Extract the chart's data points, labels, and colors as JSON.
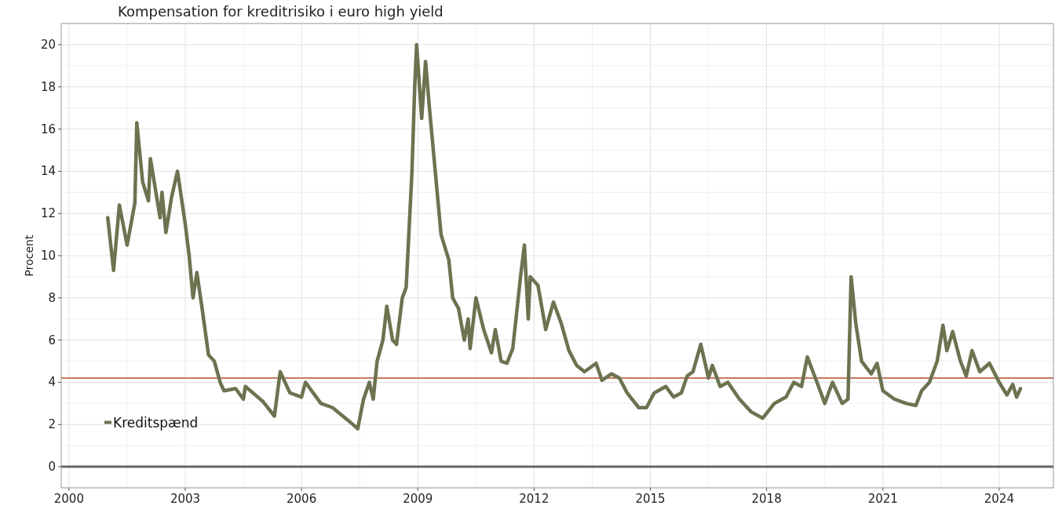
{
  "chart_data": {
    "type": "line",
    "title": "Kompensation for kreditrisiko i euro high yield",
    "ylabel": "Procent",
    "xlim": [
      1999.8,
      2025.4
    ],
    "xticks": [
      2000,
      2003,
      2006,
      2009,
      2012,
      2015,
      2018,
      2021,
      2024
    ],
    "ylim": [
      -1,
      21
    ],
    "yticks": [
      0,
      2,
      4,
      6,
      8,
      10,
      12,
      14,
      16,
      18,
      20
    ],
    "grid": true,
    "legend": "bottom left",
    "line_style": "solid",
    "series": [
      {
        "name": "Kreditspænd",
        "color": "#6b7350",
        "x": [
          2001.0,
          2001.15,
          2001.3,
          2001.5,
          2001.7,
          2001.75,
          2001.9,
          2002.05,
          2002.1,
          2002.35,
          2002.4,
          2002.5,
          2002.65,
          2002.8,
          2003.0,
          2003.1,
          2003.2,
          2003.3,
          2003.45,
          2003.6,
          2003.75,
          2003.9,
          2004.0,
          2004.3,
          2004.5,
          2004.55,
          2005.0,
          2005.3,
          2005.45,
          2005.7,
          2006.0,
          2006.1,
          2006.5,
          2006.8,
          2007.2,
          2007.45,
          2007.6,
          2007.75,
          2007.85,
          2007.95,
          2008.1,
          2008.2,
          2008.35,
          2008.45,
          2008.6,
          2008.7,
          2008.85,
          2008.92,
          2008.97,
          2009.1,
          2009.2,
          2009.3,
          2009.45,
          2009.6,
          2009.8,
          2009.9,
          2010.05,
          2010.2,
          2010.3,
          2010.35,
          2010.5,
          2010.7,
          2010.9,
          2011.0,
          2011.15,
          2011.3,
          2011.45,
          2011.65,
          2011.75,
          2011.85,
          2011.9,
          2012.1,
          2012.3,
          2012.5,
          2012.7,
          2012.9,
          2013.1,
          2013.3,
          2013.6,
          2013.75,
          2014.0,
          2014.2,
          2014.4,
          2014.7,
          2014.9,
          2015.1,
          2015.4,
          2015.6,
          2015.8,
          2015.95,
          2016.1,
          2016.3,
          2016.5,
          2016.6,
          2016.8,
          2017.0,
          2017.3,
          2017.6,
          2017.9,
          2018.2,
          2018.5,
          2018.7,
          2018.9,
          2019.05,
          2019.3,
          2019.5,
          2019.7,
          2019.95,
          2020.1,
          2020.18,
          2020.3,
          2020.45,
          2020.7,
          2020.85,
          2021.0,
          2021.3,
          2021.6,
          2021.85,
          2022.0,
          2022.2,
          2022.4,
          2022.55,
          2022.65,
          2022.8,
          2023.0,
          2023.15,
          2023.3,
          2023.5,
          2023.75,
          2024.0,
          2024.2,
          2024.35,
          2024.45,
          2024.55
        ],
        "values": [
          11.8,
          9.3,
          12.4,
          10.5,
          12.5,
          16.3,
          13.5,
          12.6,
          14.6,
          11.8,
          13.0,
          11.1,
          12.8,
          14.0,
          11.5,
          10.0,
          8.0,
          9.2,
          7.3,
          5.3,
          5.0,
          4.0,
          3.6,
          3.7,
          3.2,
          3.8,
          3.1,
          2.4,
          4.5,
          3.5,
          3.3,
          4.0,
          3.0,
          2.8,
          2.2,
          1.8,
          3.2,
          4.0,
          3.2,
          5.0,
          6.0,
          7.6,
          6.0,
          5.8,
          8.0,
          8.5,
          14.0,
          18.0,
          20.0,
          16.5,
          19.2,
          17.0,
          14.0,
          11.0,
          9.8,
          8.0,
          7.5,
          6.0,
          7.0,
          5.6,
          8.0,
          6.5,
          5.4,
          6.5,
          5.0,
          4.9,
          5.6,
          9.0,
          10.5,
          7.0,
          9.0,
          8.6,
          6.5,
          7.8,
          6.8,
          5.5,
          4.8,
          4.5,
          4.9,
          4.1,
          4.4,
          4.2,
          3.5,
          2.8,
          2.8,
          3.5,
          3.8,
          3.3,
          3.5,
          4.3,
          4.5,
          5.8,
          4.2,
          4.8,
          3.8,
          4.0,
          3.2,
          2.6,
          2.3,
          3.0,
          3.3,
          4.0,
          3.8,
          5.2,
          4.0,
          3.0,
          4.0,
          3.0,
          3.2,
          9.0,
          6.8,
          5.0,
          4.4,
          4.9,
          3.6,
          3.2,
          3.0,
          2.9,
          3.6,
          4.0,
          5.0,
          6.7,
          5.5,
          6.4,
          5.0,
          4.3,
          5.5,
          4.5,
          4.9,
          4.0,
          3.4,
          3.9,
          3.3,
          3.7
        ]
      }
    ],
    "ref_lines": [
      {
        "axis": "y",
        "value": 0,
        "color": "#666666"
      },
      {
        "axis": "y",
        "value": 4.2,
        "color": "#c87a5e"
      }
    ]
  }
}
